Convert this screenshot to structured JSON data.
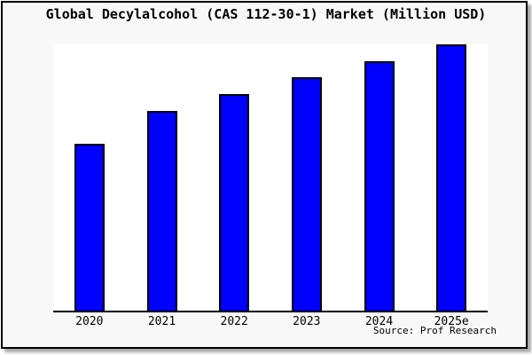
{
  "title": "Global Decylalcohol (CAS 112-30-1) Market (Million USD)",
  "source_caption": "Source: Prof Research",
  "colors": {
    "figure_bg": "#f8f8f8",
    "plot_bg": "#ffffff",
    "bar_fill": "#0000ff",
    "bar_edge": "#000000",
    "frame_border": "#000000",
    "shadow": "#a8a8a8",
    "text": "#000000"
  },
  "chart_data": {
    "type": "bar",
    "title": "Global Decylalcohol (CAS 112-30-1) Market (Million USD)",
    "categories": [
      "2020",
      "2021",
      "2022",
      "2023",
      "2024",
      "2025e"
    ],
    "values": [
      62.7,
      75.0,
      81.3,
      87.8,
      93.7,
      100.0
    ],
    "units": "Million USD",
    "xlabel": "",
    "ylabel": "",
    "ylim": [
      0,
      100
    ],
    "y_axis_tick_labels_visible": false,
    "grid": false,
    "legend": null,
    "source": "Source: Prof Research",
    "note": "No y-axis scale is shown in the image; values are relative bar heights normalized to the tallest bar (2025e = 100)."
  }
}
